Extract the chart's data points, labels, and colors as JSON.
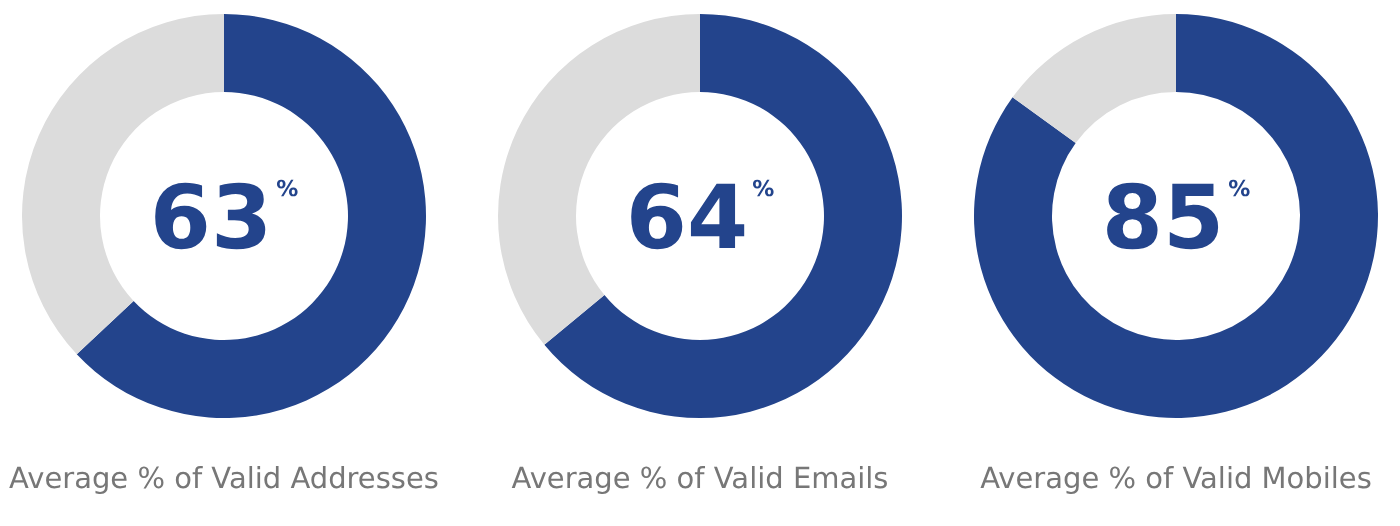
{
  "chart_data": [
    {
      "type": "donut",
      "title": "Average % of Valid Addresses",
      "categories": [
        null,
        null
      ],
      "values": [
        63,
        37
      ],
      "colors": [
        "#23448c",
        "#dcdcdc"
      ],
      "value_labels": [
        "63$^{%}$",
        null
      ]
    },
    {
      "type": "donut",
      "title": "Average % of Valid Emails",
      "categories": [
        null,
        null
      ],
      "values": [
        64,
        36
      ],
      "colors": [
        "#23448c",
        "#dcdcdc"
      ],
      "value_labels": [
        "64$^{%}$",
        null
      ]
    },
    {
      "type": "donut",
      "title": "Average % of Valid Mobiles",
      "categories": [
        null,
        null
      ],
      "values": [
        85,
        15
      ],
      "colors": [
        "#23448c",
        "#dcdcdc"
      ],
      "value_labels": [
        "85$^{%}$",
        null
      ]
    }
  ]
}
